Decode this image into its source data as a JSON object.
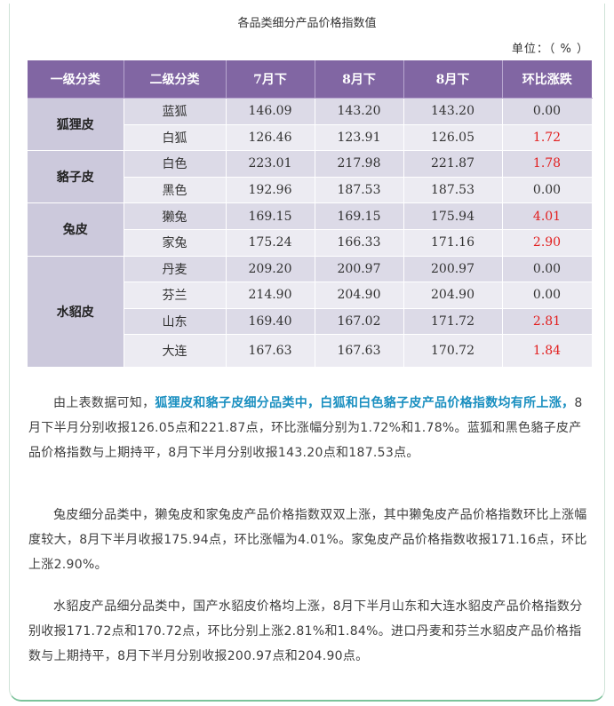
{
  "title": "各品类细分产品价格指数值",
  "unit": "单位：（ % ）",
  "headers": [
    "一级分类",
    "二级分类",
    "7月下",
    "8月下",
    "8月下",
    "环比涨跌"
  ],
  "groups": [
    {
      "name": "狐狸皮",
      "rows": [
        {
          "sub": "蓝狐",
          "jul": "146.09",
          "aug1": "143.20",
          "aug2": "143.20",
          "chg": "0.00",
          "up": false
        },
        {
          "sub": "白狐",
          "jul": "126.46",
          "aug1": "123.91",
          "aug2": "126.05",
          "chg": "1.72",
          "up": true
        }
      ]
    },
    {
      "name": "貉子皮",
      "rows": [
        {
          "sub": "白色",
          "jul": "223.01",
          "aug1": "217.98",
          "aug2": "221.87",
          "chg": "1.78",
          "up": true
        },
        {
          "sub": "黑色",
          "jul": "192.96",
          "aug1": "187.53",
          "aug2": "187.53",
          "chg": "0.00",
          "up": false
        }
      ]
    },
    {
      "name": "兔皮",
      "rows": [
        {
          "sub": "獭兔",
          "jul": "169.15",
          "aug1": "169.15",
          "aug2": "175.94",
          "chg": "4.01",
          "up": true
        },
        {
          "sub": "家兔",
          "jul": "175.24",
          "aug1": "166.33",
          "aug2": "171.16",
          "chg": "2.90",
          "up": true
        }
      ]
    },
    {
      "name": "水貂皮",
      "rows": [
        {
          "sub": "丹麦",
          "jul": "209.20",
          "aug1": "200.97",
          "aug2": "200.97",
          "chg": "0.00",
          "up": false
        },
        {
          "sub": "芬兰",
          "jul": "214.90",
          "aug1": "204.90",
          "aug2": "204.90",
          "chg": "0.00",
          "up": false
        },
        {
          "sub": "山东",
          "jul": "169.40",
          "aug1": "167.02",
          "aug2": "171.72",
          "chg": "2.81",
          "up": true
        },
        {
          "sub": "大连",
          "jul": "167.63",
          "aug1": "167.63",
          "aug2": "170.72",
          "chg": "1.84",
          "up": true
        }
      ]
    }
  ],
  "colors": {
    "header_bg": "#8166a3",
    "up": "#e22020",
    "highlight": "#1a8fc0"
  },
  "paragraphs": {
    "p1_a": "由上表数据可知，",
    "p1_hl": "狐狸皮和貉子皮细分品类中，白狐和白色貉子皮产品价格指数均有所上涨，",
    "p1_b": "8月下半月分别收报126.05点和221.87点，环比涨幅分别为1.72%和1.78%。蓝狐和黑色貉子皮产品价格指数与上期持平，8月下半月分别收报143.20点和187.53点。",
    "p2": "兔皮细分品类中，獭兔皮和家兔皮产品价格指数双双上涨，其中獭兔皮产品价格指数环比上涨幅度较大，8月下半月收报175.94点，环比涨幅为4.01%。家兔皮产品价格指数收报171.16点，环比上涨2.90%。",
    "p3": "水貂皮产品细分品类中，国产水貂皮价格均上涨，8月下半月山东和大连水貂皮产品价格指数分别收报171.72点和170.72点，环比分别上涨2.81%和1.84%。进口丹麦和芬兰水貂皮产品价格指数与上期持平，8月下半月分别收报200.97点和204.90点。"
  }
}
